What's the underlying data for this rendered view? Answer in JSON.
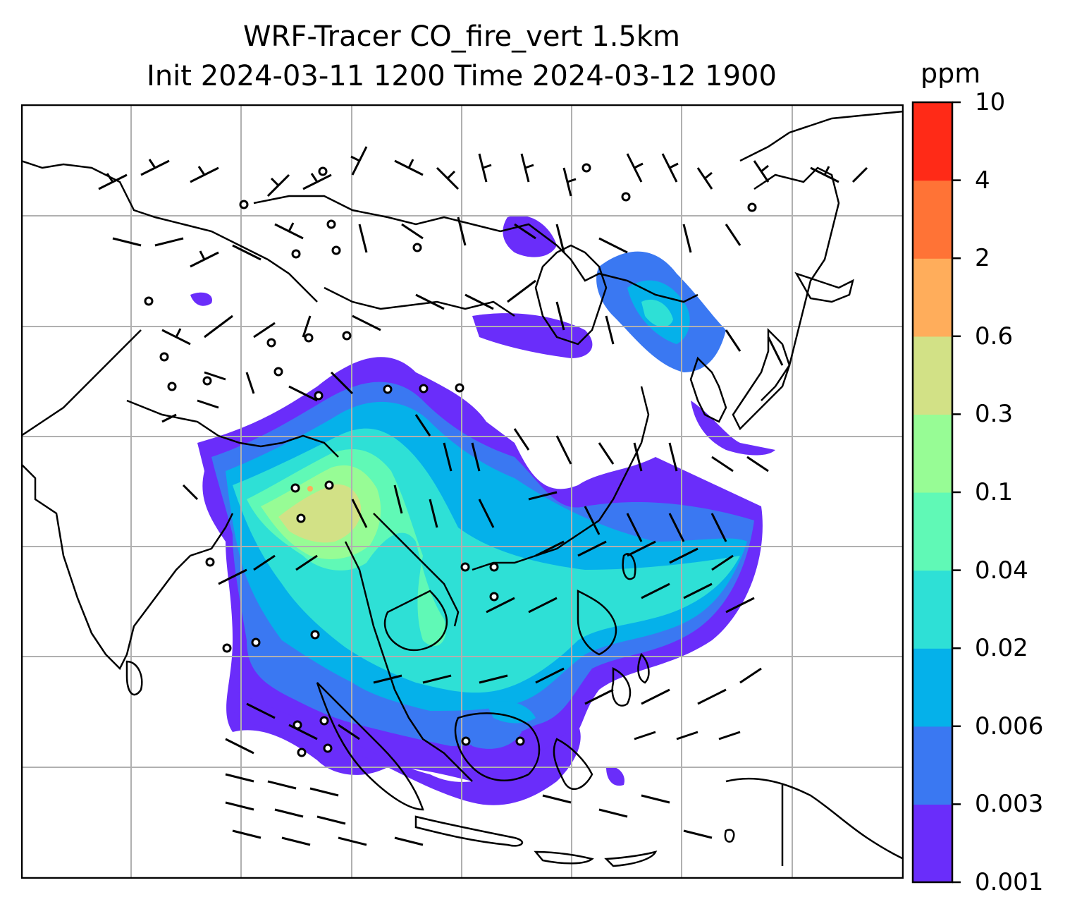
{
  "title_line1": "WRF-Tracer CO_fire_vert 1.5km",
  "title_line2": "Init 2024-03-11 1200 Time 2024-03-12 1900",
  "colorbar": {
    "unit": "ppm",
    "levels": [
      "0.001",
      "0.003",
      "0.006",
      "0.02",
      "0.04",
      "0.1",
      "0.3",
      "0.6",
      "2",
      "4",
      "10"
    ],
    "colors": [
      "#6a2dfa",
      "#3a78f2",
      "#05b1ea",
      "#2ee0d6",
      "#60f9b6",
      "#97fc95",
      "#d2e186",
      "#ffad5b",
      "#ff7336",
      "#ff2a17"
    ]
  },
  "map": {
    "region": "East and Southeast Asia",
    "overlays": [
      "coastlines",
      "country-borders",
      "gridlines",
      "wind-barbs",
      "CO_fire_vert-tracer-shading"
    ]
  }
}
